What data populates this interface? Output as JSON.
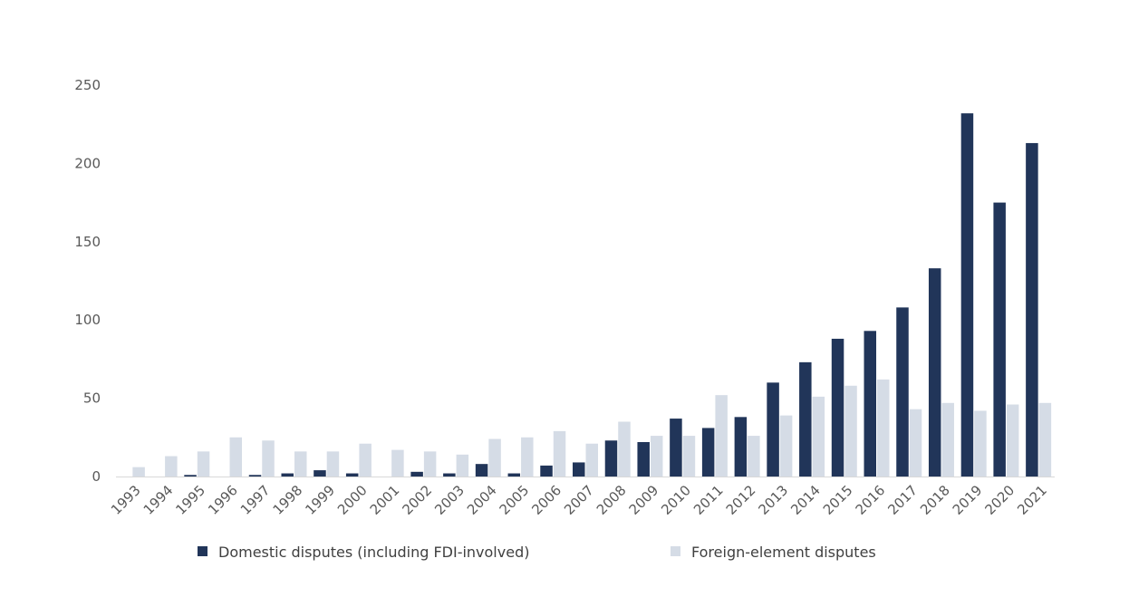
{
  "chart_data": {
    "type": "bar",
    "categories": [
      "1993",
      "1994",
      "1995",
      "1996",
      "1997",
      "1998",
      "1999",
      "2000",
      "2001",
      "2002",
      "2003",
      "2004",
      "2005",
      "2006",
      "2007",
      "2008",
      "2009",
      "2010",
      "2011",
      "2012",
      "2013",
      "2014",
      "2015",
      "2016",
      "2017",
      "2018",
      "2019",
      "2020",
      "2021"
    ],
    "series": [
      {
        "name": "Domestic disputes (including FDI-involved)",
        "color": "#213559",
        "values": [
          0,
          0,
          1,
          0,
          1,
          2,
          4,
          2,
          0,
          3,
          2,
          8,
          2,
          7,
          9,
          23,
          22,
          37,
          31,
          38,
          60,
          73,
          88,
          93,
          108,
          133,
          232,
          175,
          213
        ]
      },
      {
        "name": "Foreign-element disputes",
        "color": "#d5dce6",
        "values": [
          6,
          13,
          16,
          25,
          23,
          16,
          16,
          21,
          17,
          16,
          14,
          24,
          25,
          29,
          21,
          35,
          26,
          26,
          52,
          26,
          39,
          51,
          58,
          62,
          43,
          47,
          42,
          46,
          47
        ]
      }
    ],
    "title": "",
    "xlabel": "",
    "ylabel": "",
    "ylim": [
      0,
      250
    ],
    "yticks": [
      "0",
      "50",
      "100",
      "150",
      "200",
      "250"
    ],
    "grid": false,
    "legend_position": "bottom"
  }
}
